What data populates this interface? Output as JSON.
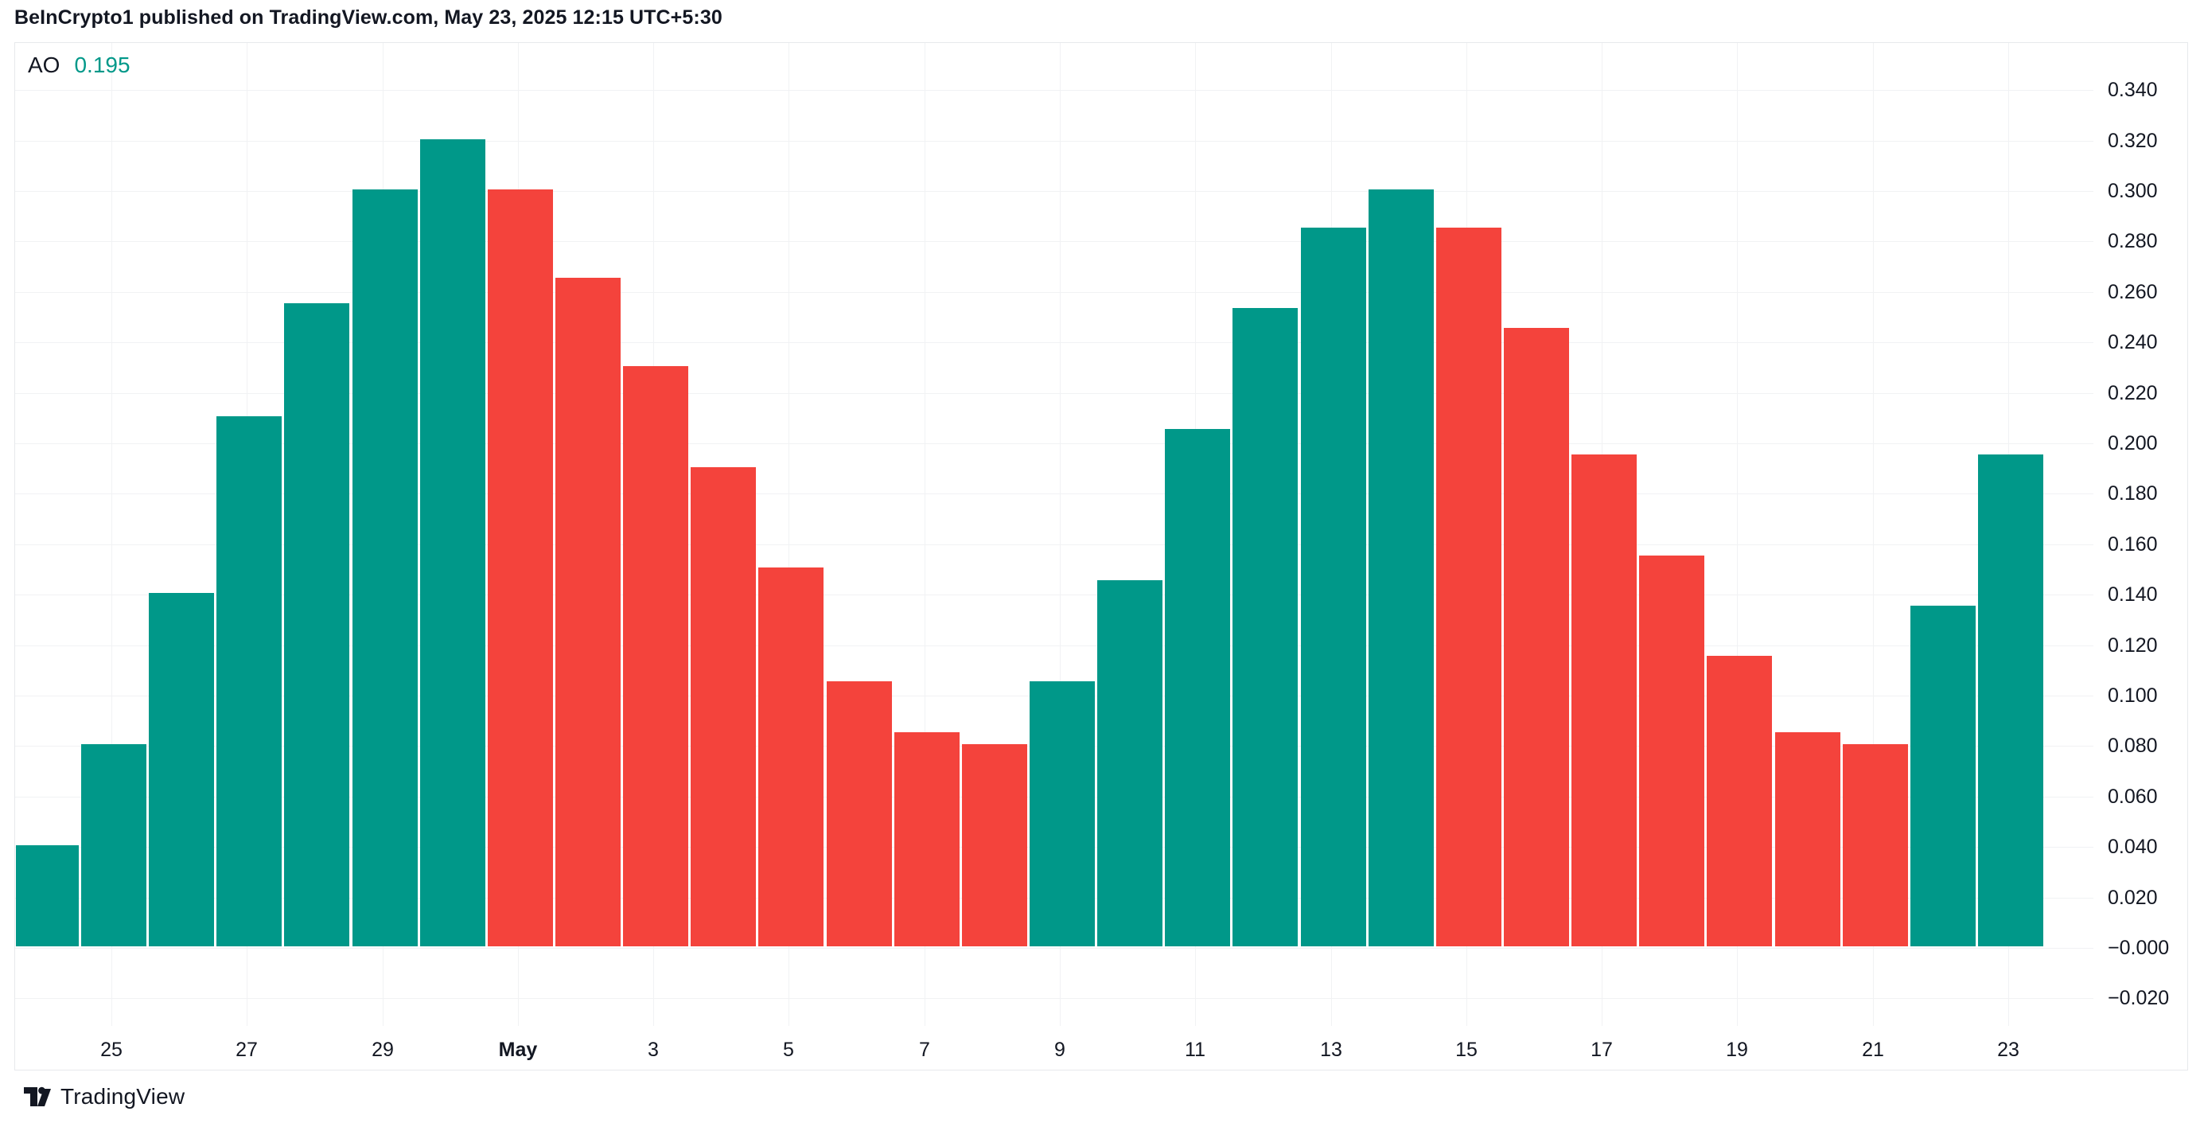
{
  "title": "BeInCrypto1 published on TradingView.com, May 23, 2025 12:15 UTC+5:30",
  "legend": {
    "indicator": "AO",
    "value": "0.195"
  },
  "footer": {
    "brand": "TradingView"
  },
  "colors": {
    "up": "#009889",
    "down": "#F4433C",
    "text": "#131722",
    "grid": "#F1F2F4",
    "border": "#E7E9EC",
    "background": "#FFFFFF",
    "legend_value": "#009889"
  },
  "chart_data": {
    "type": "bar",
    "title": "AO (Awesome Oscillator)",
    "xlabel": "",
    "ylabel": "",
    "grid": true,
    "legend_position": "top-left",
    "ylim": [
      -0.045,
      0.355
    ],
    "x": [
      "Apr 24",
      "Apr 25",
      "Apr 26",
      "Apr 27",
      "Apr 28",
      "Apr 29",
      "Apr 30",
      "May 1",
      "May 2",
      "May 3",
      "May 4",
      "May 5",
      "May 6",
      "May 7",
      "May 8",
      "May 9",
      "May 10",
      "May 11",
      "May 12",
      "May 13",
      "May 14",
      "May 15",
      "May 16",
      "May 17",
      "May 18",
      "May 19",
      "May 20",
      "May 21",
      "May 22",
      "May 23"
    ],
    "values": [
      0.04,
      0.08,
      0.14,
      0.21,
      0.255,
      0.3,
      0.32,
      0.3,
      0.265,
      0.23,
      0.19,
      0.15,
      0.105,
      0.085,
      0.08,
      0.105,
      0.145,
      0.205,
      0.253,
      0.285,
      0.3,
      0.285,
      0.245,
      0.195,
      0.155,
      0.115,
      0.085,
      0.08,
      0.135,
      0.195
    ],
    "directions": [
      "up",
      "up",
      "up",
      "up",
      "up",
      "up",
      "up",
      "down",
      "down",
      "down",
      "down",
      "down",
      "down",
      "down",
      "down",
      "up",
      "up",
      "up",
      "up",
      "up",
      "up",
      "down",
      "down",
      "down",
      "down",
      "down",
      "down",
      "down",
      "up",
      "up"
    ],
    "y_ticks": {
      "labels": [
        "0.340",
        "0.320",
        "0.300",
        "0.280",
        "0.260",
        "0.240",
        "0.220",
        "0.200",
        "0.180",
        "0.160",
        "0.140",
        "0.120",
        "0.100",
        "0.080",
        "0.060",
        "0.040",
        "0.020",
        "−0.000",
        "−0.020"
      ],
      "values": [
        0.34,
        0.32,
        0.3,
        0.28,
        0.26,
        0.24,
        0.22,
        0.2,
        0.18,
        0.16,
        0.14,
        0.12,
        0.1,
        0.08,
        0.06,
        0.04,
        0.02,
        0.0,
        -0.02
      ]
    },
    "x_ticks": [
      {
        "label": "25",
        "index": 1,
        "bold": false
      },
      {
        "label": "27",
        "index": 3,
        "bold": false
      },
      {
        "label": "29",
        "index": 5,
        "bold": false
      },
      {
        "label": "May",
        "index": 7,
        "bold": true
      },
      {
        "label": "3",
        "index": 9,
        "bold": false
      },
      {
        "label": "5",
        "index": 11,
        "bold": false
      },
      {
        "label": "7",
        "index": 13,
        "bold": false
      },
      {
        "label": "9",
        "index": 15,
        "bold": false
      },
      {
        "label": "11",
        "index": 17,
        "bold": false
      },
      {
        "label": "13",
        "index": 19,
        "bold": false
      },
      {
        "label": "15",
        "index": 21,
        "bold": false
      },
      {
        "label": "17",
        "index": 23,
        "bold": false
      },
      {
        "label": "19",
        "index": 25,
        "bold": false
      },
      {
        "label": "21",
        "index": 27,
        "bold": false
      },
      {
        "label": "23",
        "index": 29,
        "bold": false
      }
    ]
  }
}
